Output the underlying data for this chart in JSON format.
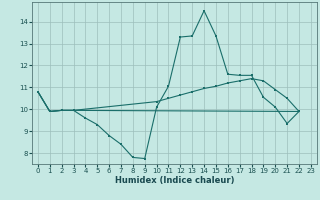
{
  "xlabel": "Humidex (Indice chaleur)",
  "bg_color": "#c5e8e3",
  "grid_color": "#9dbfbc",
  "line_color": "#1a6e6a",
  "xlim": [
    -0.5,
    23.5
  ],
  "ylim": [
    7.5,
    14.9
  ],
  "xticks": [
    0,
    1,
    2,
    3,
    4,
    5,
    6,
    7,
    8,
    9,
    10,
    11,
    12,
    13,
    14,
    15,
    16,
    17,
    18,
    19,
    20,
    21,
    22,
    23
  ],
  "yticks": [
    8,
    9,
    10,
    11,
    12,
    13,
    14
  ],
  "line1_x": [
    0,
    1,
    2,
    3,
    4,
    5,
    6,
    7,
    8,
    9,
    10,
    11,
    12,
    13,
    14,
    15,
    16,
    17,
    18,
    19,
    20,
    21,
    22
  ],
  "line1_y": [
    10.8,
    9.9,
    9.95,
    9.95,
    9.6,
    9.3,
    8.8,
    8.4,
    7.8,
    7.75,
    10.1,
    11.05,
    13.3,
    13.35,
    14.5,
    13.35,
    11.6,
    11.55,
    11.55,
    10.55,
    10.1,
    9.35,
    9.9
  ],
  "line2_x": [
    0,
    1,
    2,
    3,
    10,
    11,
    12,
    13,
    14,
    15,
    16,
    17,
    18,
    19,
    20,
    21,
    22
  ],
  "line2_y": [
    10.8,
    9.9,
    9.95,
    9.95,
    10.35,
    10.5,
    10.65,
    10.8,
    10.95,
    11.05,
    11.2,
    11.3,
    11.4,
    11.3,
    10.9,
    10.5,
    9.9
  ],
  "line3_x": [
    0,
    1,
    2,
    3,
    22
  ],
  "line3_y": [
    10.8,
    9.9,
    9.95,
    9.95,
    9.9
  ]
}
